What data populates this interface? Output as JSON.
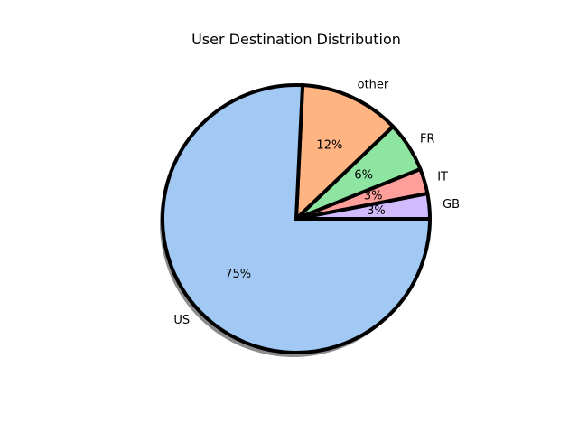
{
  "chart_data": {
    "type": "pie",
    "title": "User Destination Distribution",
    "categories": [
      "GB",
      "IT",
      "FR",
      "other",
      "US"
    ],
    "values": [
      3,
      3,
      6,
      12,
      75
    ],
    "percent_labels": [
      "3%",
      "3%",
      "6%",
      "12%",
      "75%"
    ],
    "colors": [
      "#d0bbff",
      "#ff9f9b",
      "#8de5a1",
      "#ffb482",
      "#a1c9f4"
    ],
    "edge_color": "#000000",
    "shadow": true,
    "start_angle_deg": 0,
    "direction": "counterclockwise",
    "legend": "none"
  }
}
